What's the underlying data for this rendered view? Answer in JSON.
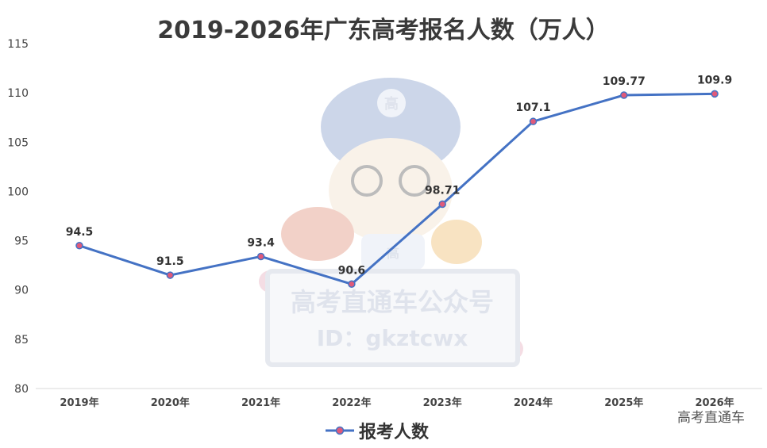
{
  "chart_data": {
    "type": "line",
    "title": "2019-2026年广东高考报名人数（万人）",
    "categories": [
      "2019年",
      "2020年",
      "2021年",
      "2022年",
      "2023年",
      "2024年",
      "2025年",
      "2026年"
    ],
    "series": [
      {
        "name": "报考人数",
        "values": [
          94.5,
          91.5,
          93.4,
          90.6,
          98.71,
          107.1,
          109.77,
          109.9
        ],
        "labels": [
          "94.5",
          "91.5",
          "93.4",
          "90.6",
          "98.71",
          "107.1",
          "109.77",
          "109.9"
        ]
      }
    ],
    "ylim": [
      80,
      115
    ],
    "yticks": [
      80,
      85,
      90,
      95,
      100,
      105,
      110,
      115
    ],
    "grid": false,
    "legend": "bottom-center",
    "highlight_index": 7
  },
  "colors": {
    "line": "#4472c4",
    "marker_fill": "#e05a7a",
    "highlight_label": "#e00000",
    "watermark": "#b9c2d6"
  },
  "watermark": {
    "cap_badge": "高",
    "shirt_badge": "高",
    "line1": "高考直通车公众号",
    "line2": "ID：gkztcwx"
  },
  "source_label": "高考直通车"
}
